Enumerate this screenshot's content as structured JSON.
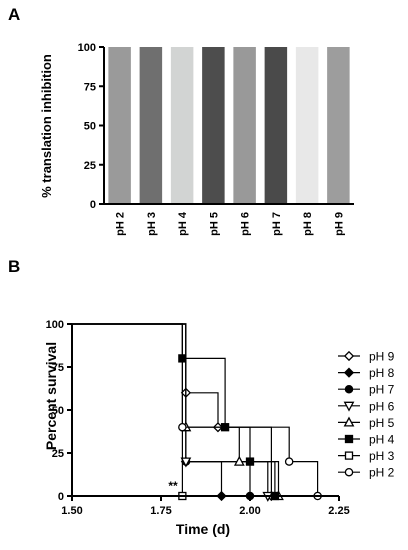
{
  "panels": {
    "a_label": "A",
    "b_label": "B"
  },
  "chart_data": [
    {
      "type": "bar",
      "panel": "A",
      "title": "",
      "xlabel": "",
      "ylabel": "% translation inhibition",
      "categories": [
        "pH 2",
        "pH 3",
        "pH 4",
        "pH 5",
        "pH 6",
        "pH 7",
        "pH 8",
        "pH 9"
      ],
      "values": [
        100,
        100,
        100,
        100,
        100,
        100,
        100,
        100
      ],
      "bar_colors": [
        "#9a9a9a",
        "#6f6f6f",
        "#d2d4d3",
        "#4d4d4d",
        "#999999",
        "#4a4a4a",
        "#e8e8e8",
        "#9d9d9d"
      ],
      "ylim": [
        0,
        100
      ],
      "yticks": [
        0,
        25,
        50,
        75,
        100
      ],
      "grid": false
    },
    {
      "type": "line",
      "subtype": "step",
      "panel": "B",
      "title": "",
      "xlabel": "Time (d)",
      "ylabel": "Percent survival",
      "xlim": [
        1.5,
        2.25
      ],
      "ylim": [
        0,
        100
      ],
      "xticks": [
        "1.50",
        "1.75",
        "2.00",
        "2.25"
      ],
      "yticks": [
        0,
        25,
        50,
        75,
        100
      ],
      "annotation": "**",
      "legend_position": "right",
      "grid": false,
      "series": [
        {
          "name": "pH 9",
          "marker": "diamond-open",
          "start": 1.5,
          "steps": [
            [
              1.82,
              60
            ],
            [
              1.91,
              40
            ],
            [
              2.06,
              0
            ]
          ]
        },
        {
          "name": "pH 8",
          "marker": "diamond-filled",
          "start": 1.5,
          "steps": [
            [
              1.82,
              20
            ],
            [
              1.92,
              0
            ]
          ]
        },
        {
          "name": "pH 7",
          "marker": "circle-filled",
          "start": 1.5,
          "steps": [
            [
              1.82,
              20
            ],
            [
              2.0,
              0
            ]
          ]
        },
        {
          "name": "pH 6",
          "marker": "triangle-down-open",
          "start": 1.5,
          "steps": [
            [
              1.82,
              20
            ],
            [
              2.05,
              0
            ]
          ]
        },
        {
          "name": "pH 5",
          "marker": "triangle-up-open",
          "start": 1.5,
          "steps": [
            [
              1.82,
              40
            ],
            [
              1.97,
              20
            ],
            [
              2.08,
              0
            ]
          ]
        },
        {
          "name": "pH 4",
          "marker": "square-filled",
          "start": 1.5,
          "steps": [
            [
              1.81,
              80
            ],
            [
              1.93,
              40
            ],
            [
              2.0,
              20
            ],
            [
              2.07,
              0
            ]
          ]
        },
        {
          "name": "pH 3",
          "marker": "square-open",
          "start": 1.5,
          "steps": [
            [
              1.81,
              0
            ]
          ]
        },
        {
          "name": "pH 2",
          "marker": "circle-open",
          "start": 1.5,
          "steps": [
            [
              1.81,
              40
            ],
            [
              2.11,
              20
            ],
            [
              2.19,
              0
            ]
          ]
        }
      ]
    }
  ]
}
